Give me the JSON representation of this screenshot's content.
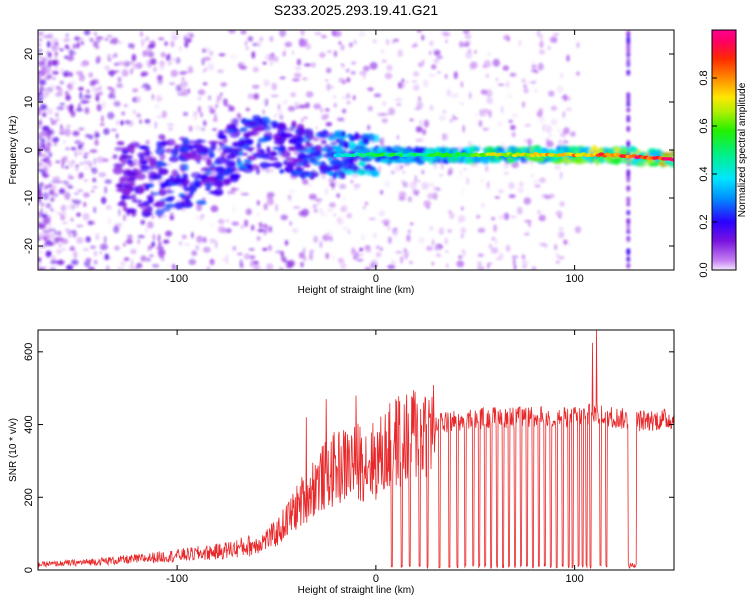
{
  "title": "S233.2025.293.19.41.G21",
  "chart_data": [
    {
      "type": "heatmap",
      "xlabel": "Height of straight line (km)",
      "ylabel": "Frequency (Hz)",
      "xlim": [
        -170,
        150
      ],
      "ylim": [
        -25,
        25
      ],
      "xticks": [
        -100,
        0,
        100
      ],
      "yticks": [
        -20,
        -10,
        0,
        10,
        20
      ],
      "colorbar": {
        "label": "Normalized spectral amplitude",
        "range": [
          0,
          1
        ],
        "ticks": [
          0.0,
          0.2,
          0.4,
          0.6,
          0.8
        ],
        "tick_labels": [
          "0.0",
          "0.2",
          "0.4",
          "0.6",
          "0.8"
        ]
      },
      "ridge": {
        "x": [
          -130,
          -110,
          -100,
          -90,
          -80,
          -70,
          -60,
          -50,
          -40,
          -30,
          -20,
          -10,
          0,
          20,
          40,
          60,
          80,
          100,
          120,
          150
        ],
        "freq": [
          -6,
          -6,
          -5,
          -5,
          -3,
          0,
          1,
          1,
          0,
          -1,
          -1,
          -1,
          -1,
          -1,
          -1,
          -1,
          -1,
          -1,
          -1,
          -2
        ],
        "amplitude": [
          0.2,
          0.3,
          0.3,
          0.3,
          0.3,
          0.35,
          0.3,
          0.3,
          0.3,
          0.35,
          0.4,
          0.45,
          0.5,
          0.5,
          0.55,
          0.65,
          0.7,
          0.75,
          0.85,
          0.95
        ]
      }
    },
    {
      "type": "line",
      "xlabel": "Height of straight line (km)",
      "ylabel": "SNR (10 * v/v)",
      "xlim": [
        -170,
        150
      ],
      "ylim": [
        0,
        660
      ],
      "xticks": [
        -100,
        0,
        100
      ],
      "yticks": [
        0,
        200,
        400,
        600
      ],
      "series": [
        {
          "name": "SNR",
          "color": "#e8282a",
          "envelope_x": [
            -170,
            -150,
            -120,
            -100,
            -80,
            -60,
            -50,
            -40,
            -30,
            -20,
            -10,
            0,
            10,
            20,
            30,
            40,
            60,
            80,
            100,
            110,
            120,
            130,
            150
          ],
          "envelope_y": [
            15,
            20,
            30,
            40,
            50,
            70,
            100,
            170,
            240,
            280,
            300,
            300,
            350,
            380,
            400,
            410,
            420,
            420,
            420,
            430,
            420,
            410,
            415
          ],
          "peaks": [
            {
              "x": 111,
              "y": 660
            },
            {
              "x": 109,
              "y": 625
            },
            {
              "x": -25,
              "y": 470
            },
            {
              "x": -10,
              "y": 480
            },
            {
              "x": -35,
              "y": 420
            }
          ],
          "dropouts_x": [
            8,
            13,
            17,
            22,
            26,
            32,
            37,
            41,
            45,
            49,
            52,
            55,
            58,
            61,
            64,
            67,
            70,
            73,
            76,
            79,
            82,
            85,
            88,
            91,
            94,
            97,
            99,
            102,
            104,
            106,
            108,
            113,
            116
          ],
          "dropout_band": [
            127,
            131
          ]
        }
      ]
    }
  ]
}
